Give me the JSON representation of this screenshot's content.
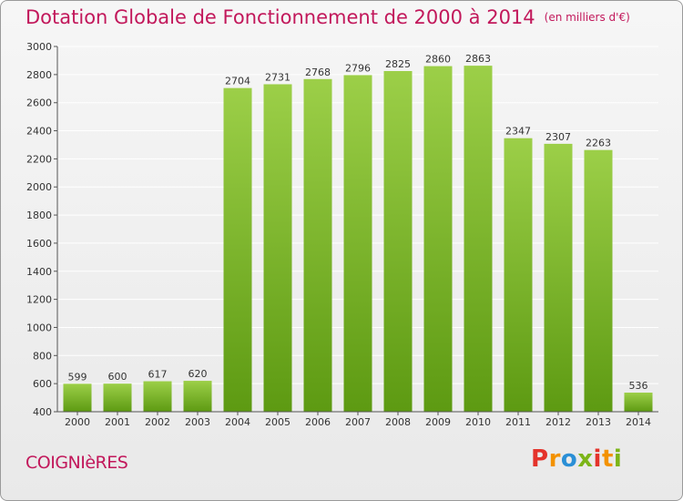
{
  "header": {
    "title": "Dotation Globale de Fonctionnement de 2000 à 2014",
    "unit": "(en milliers d'€)"
  },
  "footer": {
    "commune": "COIGNIèRES",
    "brand": [
      "P",
      "r",
      "o",
      "x",
      "i",
      "t",
      "i"
    ],
    "brand_colors": [
      "#e4332b",
      "#f39200",
      "#2a8fd6",
      "#7cb518",
      "#e4332b",
      "#f39200",
      "#7cb518"
    ]
  },
  "colors": {
    "title": "#c2185b",
    "bar_top": "#9ccf48",
    "bar_bottom": "#5d9a12",
    "grid": "#ffffff",
    "axis_text": "#333333"
  },
  "chart_data": {
    "type": "bar",
    "title": "Dotation Globale de Fonctionnement de 2000 à 2014",
    "xlabel": "",
    "ylabel": "",
    "categories": [
      "2000",
      "2001",
      "2002",
      "2003",
      "2004",
      "2005",
      "2006",
      "2007",
      "2008",
      "2009",
      "2010",
      "2011",
      "2012",
      "2013",
      "2014"
    ],
    "values": [
      599,
      600,
      617,
      620,
      2704,
      2731,
      2768,
      2796,
      2825,
      2860,
      2863,
      2347,
      2307,
      2263,
      536
    ],
    "ylim": [
      400,
      3000
    ],
    "yticks": [
      400,
      600,
      800,
      1000,
      1200,
      1400,
      1600,
      1800,
      2000,
      2200,
      2400,
      2600,
      2800,
      3000
    ],
    "grid": true,
    "legend": "none"
  }
}
